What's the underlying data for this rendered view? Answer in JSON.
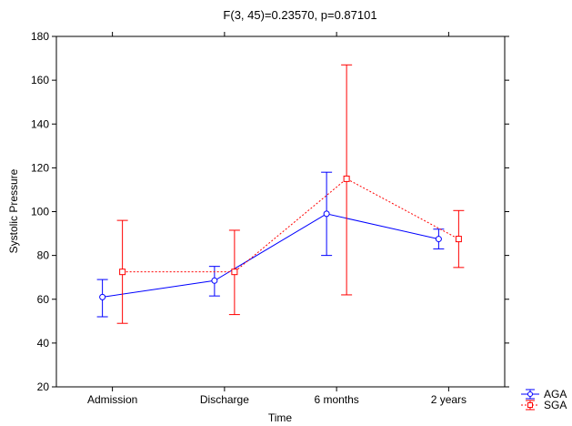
{
  "chart_data": {
    "type": "line",
    "title": "F(3, 45)=0.23570, p=0.87101",
    "xlabel": "Time",
    "ylabel": "Systolic Pressure",
    "categories": [
      "Admission",
      "Discharge",
      "6 months",
      "2 years"
    ],
    "ylim": [
      20,
      180
    ],
    "yticks": [
      20,
      40,
      60,
      80,
      100,
      120,
      140,
      160,
      180
    ],
    "grid": false,
    "legend_position": "bottom-right",
    "error_bars": true,
    "series": [
      {
        "name": "AGA",
        "color": "#0000ff",
        "line_style": "solid",
        "marker": "circle",
        "values": [
          61,
          68.5,
          99,
          87.5
        ],
        "error_low": [
          52,
          61.5,
          80,
          83
        ],
        "error_high": [
          69,
          75,
          118,
          92
        ]
      },
      {
        "name": "SGA",
        "color": "#ff0000",
        "line_style": "dashed",
        "marker": "square",
        "values": [
          72.5,
          72.5,
          115,
          87.5
        ],
        "error_low": [
          49,
          53,
          62,
          74.5
        ],
        "error_high": [
          96,
          91.5,
          167,
          100.5
        ]
      }
    ]
  }
}
